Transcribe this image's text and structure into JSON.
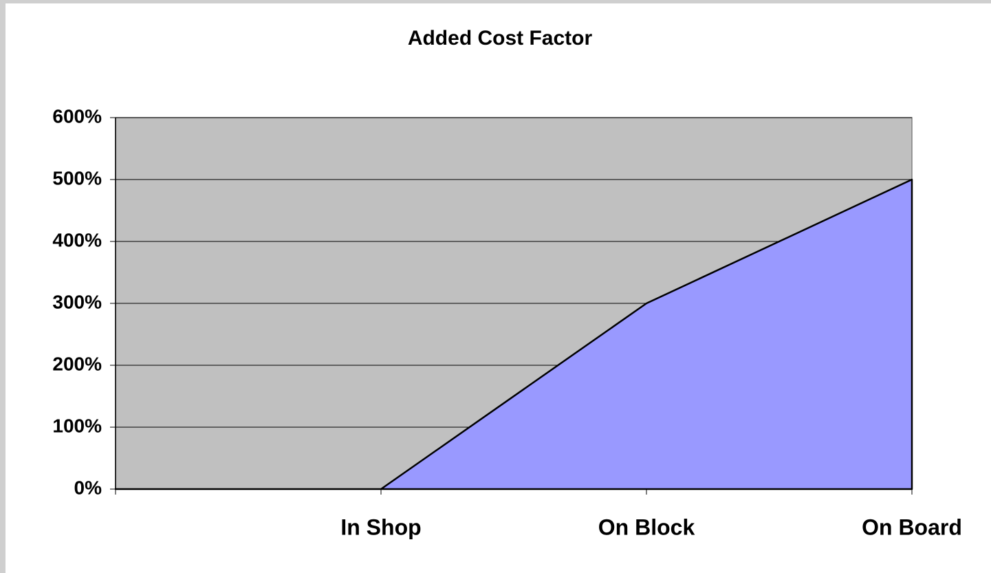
{
  "chart_data": {
    "type": "area",
    "title": "Added Cost Factor",
    "categories": [
      null,
      "In Shop",
      "On Block",
      "On Board"
    ],
    "values": [
      0,
      0,
      300,
      500
    ],
    "color": "#9999ff",
    "line_color": "#000000",
    "plot_background": "#c0c0c0",
    "ylim": [
      0,
      600
    ],
    "yticks": [
      {
        "value": 0,
        "label": "0%"
      },
      {
        "value": 100,
        "label": "100%"
      },
      {
        "value": 200,
        "label": "200%"
      },
      {
        "value": 300,
        "label": "300%"
      },
      {
        "value": 400,
        "label": "400%"
      },
      {
        "value": 500,
        "label": "500%"
      },
      {
        "value": 600,
        "label": "600%"
      }
    ],
    "grid": true
  }
}
